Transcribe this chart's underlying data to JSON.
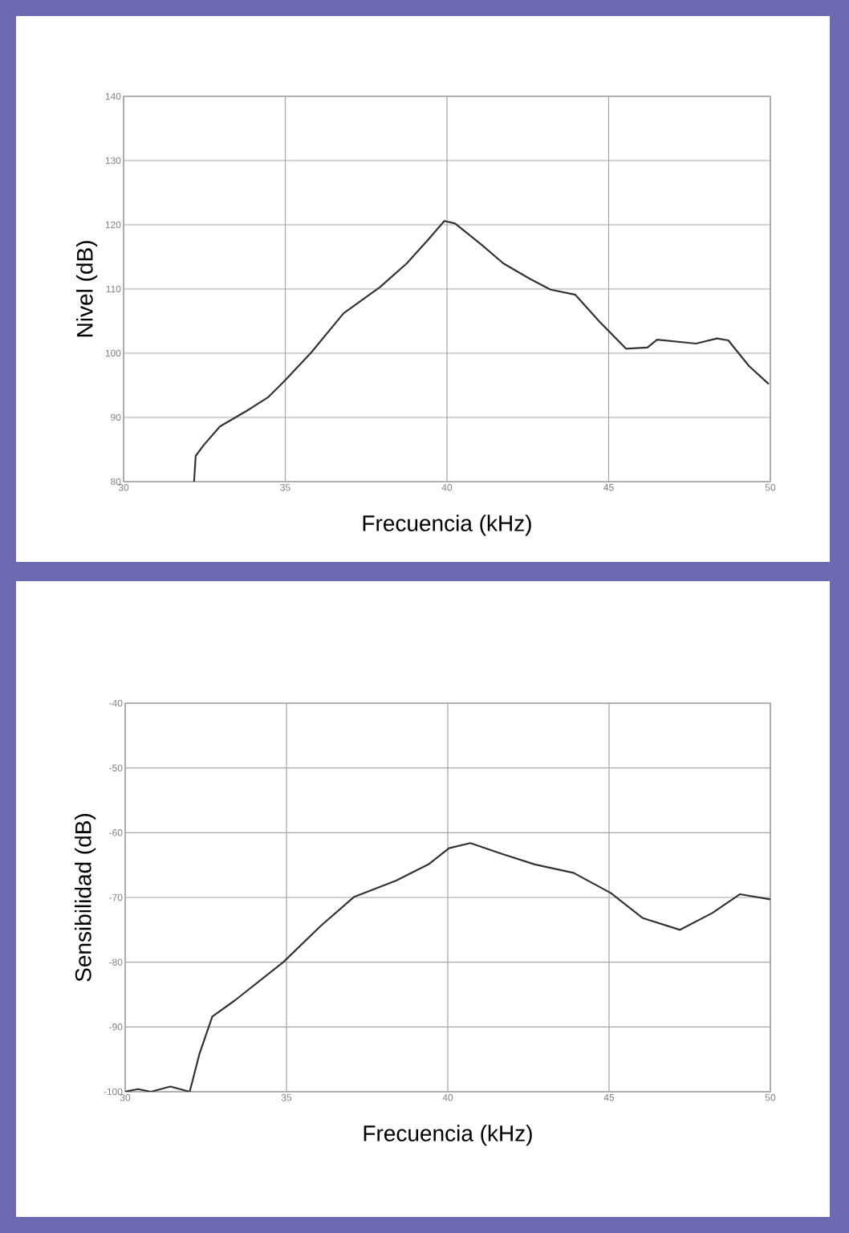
{
  "chart_data": [
    {
      "type": "line",
      "xlabel": "Frecuencia (kHz)",
      "ylabel": "Nivel (dB)",
      "xlim": [
        30,
        50
      ],
      "ylim": [
        80,
        140
      ],
      "xticks": [
        30,
        35,
        40,
        45,
        50
      ],
      "yticks": [
        80,
        90,
        100,
        110,
        120,
        130,
        140
      ],
      "grid": true,
      "color": "#333333",
      "x": [
        32.18,
        32.23,
        32.48,
        32.98,
        33.8,
        34.46,
        34.96,
        35.8,
        36.8,
        37.93,
        38.76,
        39.42,
        39.92,
        40.25,
        41.07,
        41.74,
        42.56,
        43.2,
        43.97,
        44.7,
        45.54,
        46.2,
        46.5,
        47.7,
        48.35,
        48.7,
        49.34,
        49.95
      ],
      "values": [
        80,
        84,
        85.7,
        88.6,
        91,
        93.1,
        95.6,
        100.1,
        106.2,
        110.3,
        114,
        117.7,
        120.6,
        120.2,
        116.9,
        114,
        111.6,
        109.9,
        109.1,
        105,
        100.7,
        100.9,
        102.1,
        101.5,
        102.3,
        102,
        98,
        95.2
      ]
    },
    {
      "type": "line",
      "xlabel": "Frecuencia (kHz)",
      "ylabel": "Sensibilidad (dB)",
      "xlim": [
        30,
        50
      ],
      "ylim": [
        -100,
        -40
      ],
      "xticks": [
        30,
        35,
        40,
        45,
        50
      ],
      "yticks": [
        -100,
        -90,
        -80,
        -70,
        -60,
        -50,
        -40
      ],
      "grid": true,
      "color": "#333333",
      "x": [
        30,
        30.4,
        30.8,
        31.4,
        32,
        32.3,
        32.7,
        33.4,
        34.9,
        36.06,
        37.1,
        38.4,
        39.4,
        40.04,
        40.7,
        41.7,
        42.7,
        43.9,
        45.05,
        46.05,
        47.2,
        48.2,
        49.06,
        50
      ],
      "values": [
        -100,
        -99.6,
        -100,
        -99.2,
        -100,
        -94.2,
        -88.4,
        -85.9,
        -80,
        -74.4,
        -69.9,
        -67.4,
        -64.9,
        -62.4,
        -61.6,
        -63.3,
        -64.9,
        -66.2,
        -69.3,
        -73.2,
        -75,
        -72.4,
        -69.5,
        -70.3
      ]
    }
  ]
}
